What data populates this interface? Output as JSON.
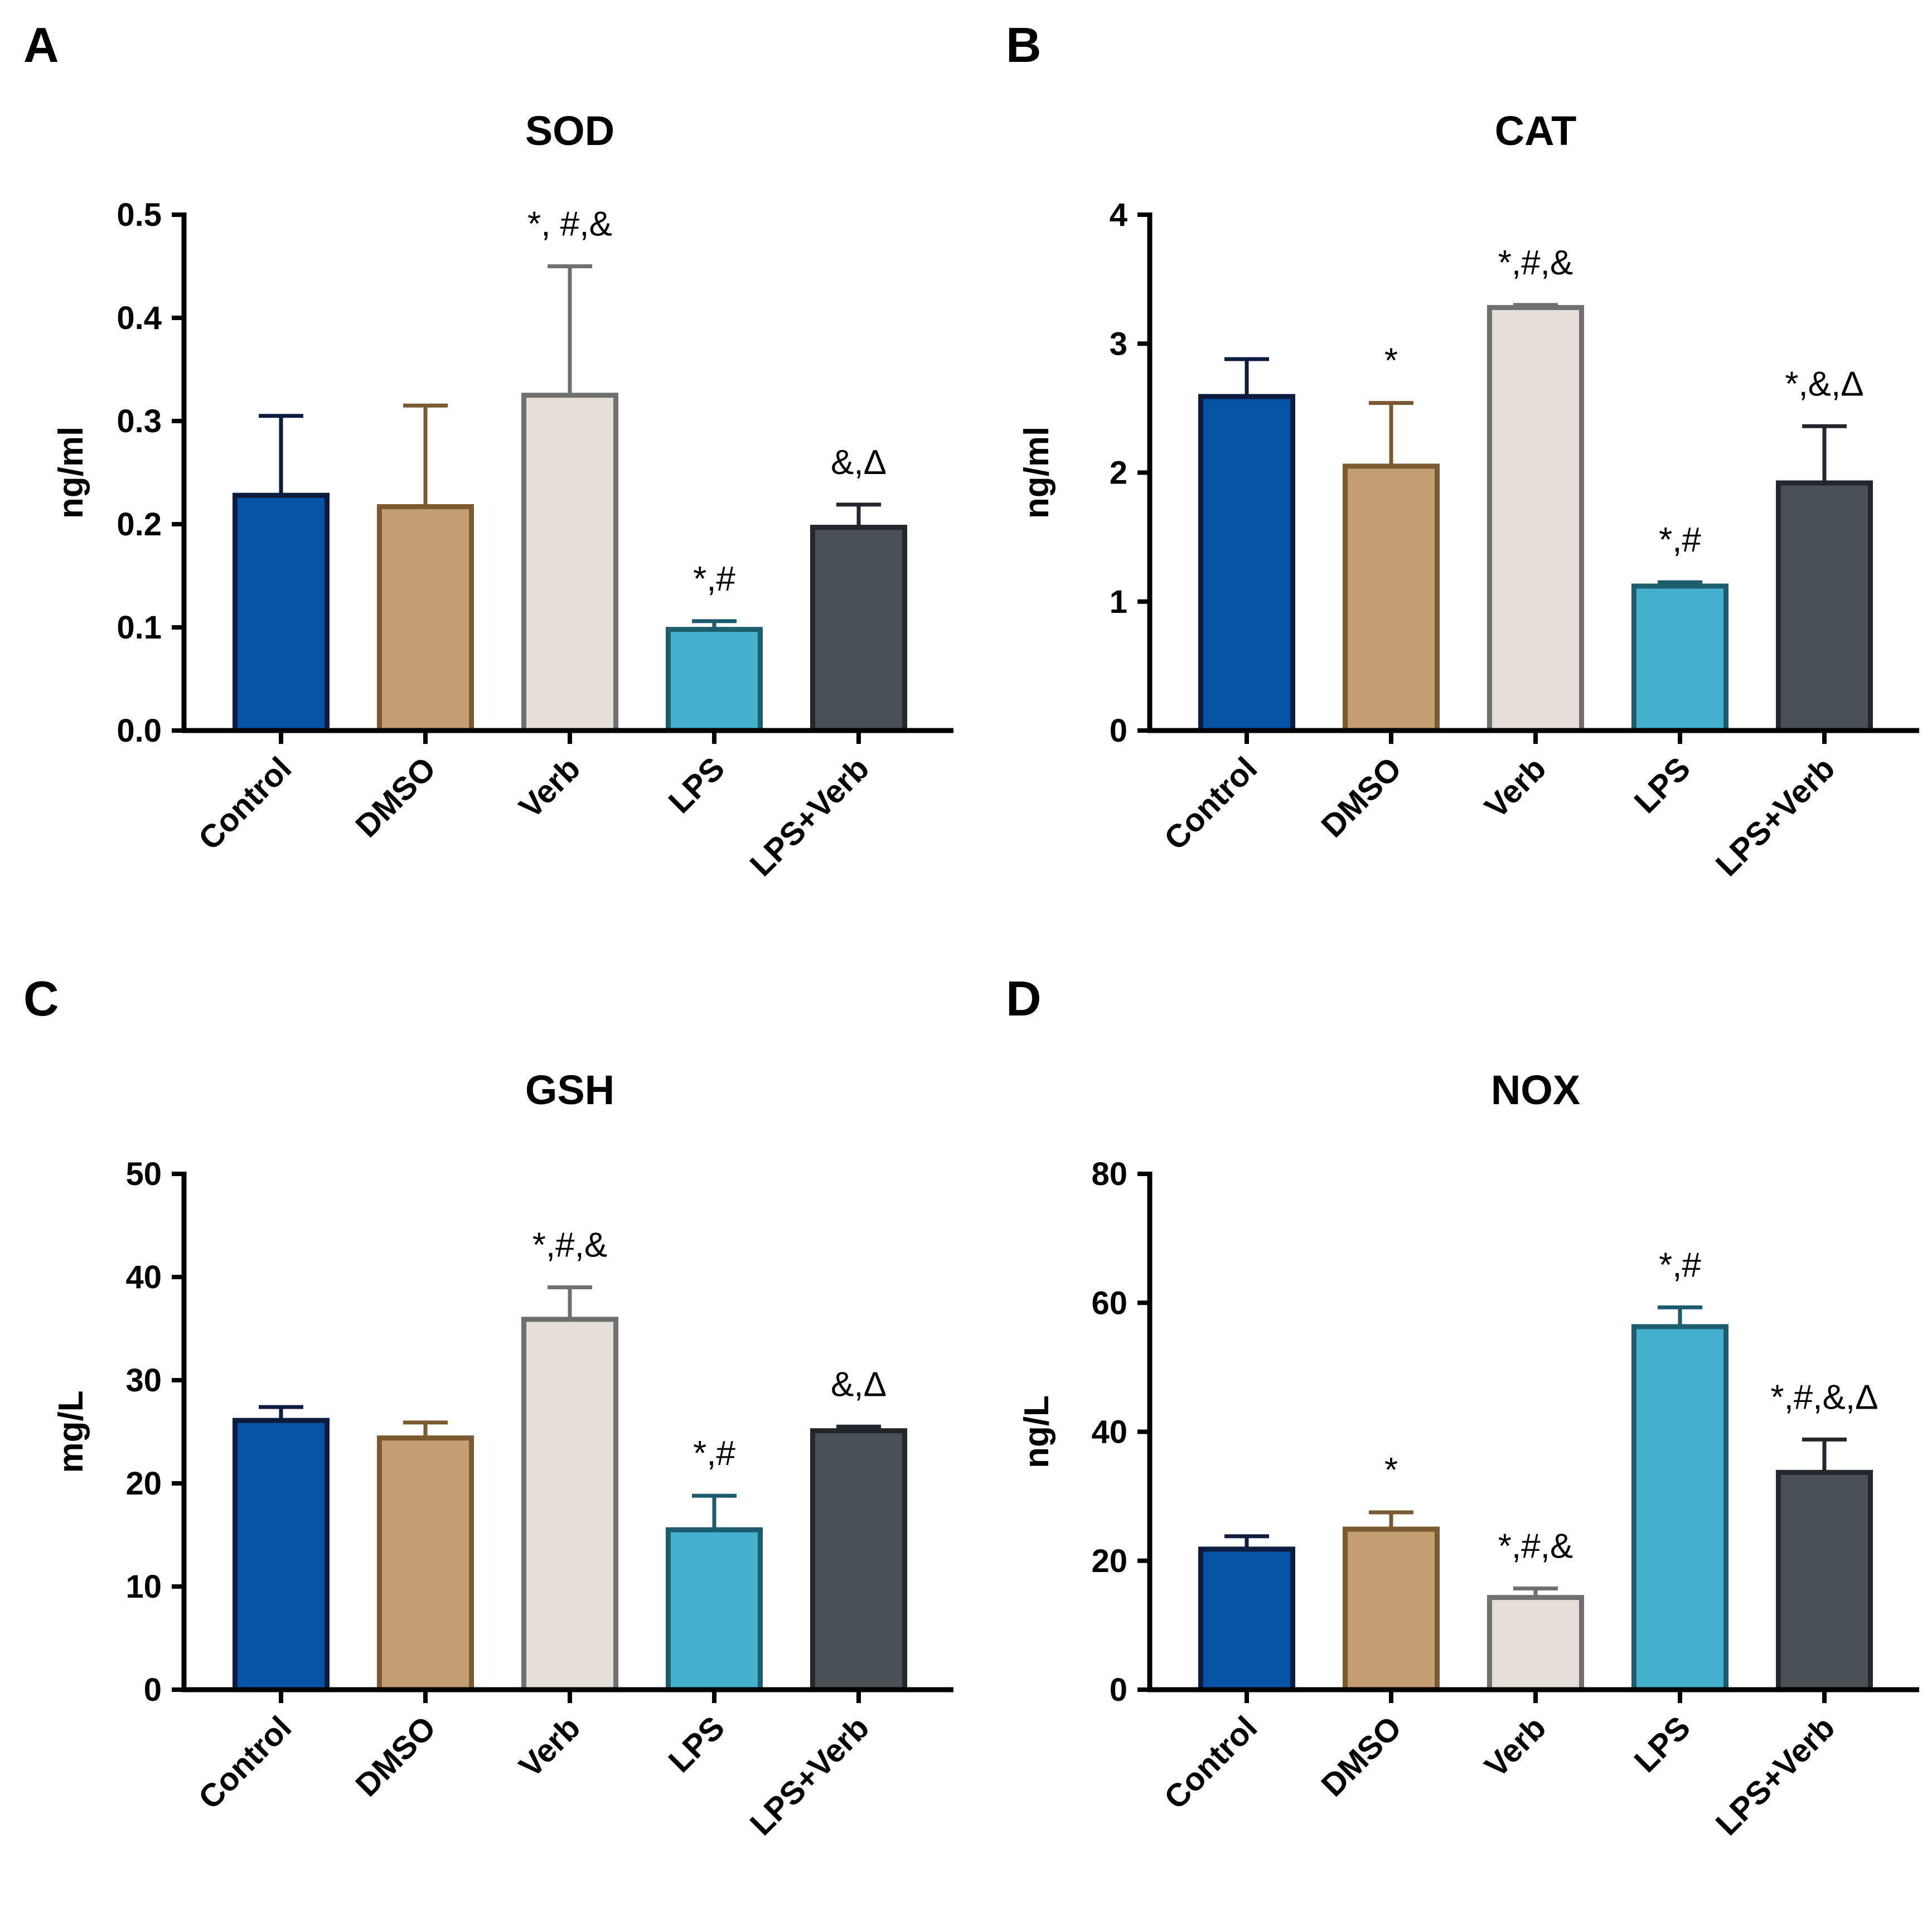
{
  "panels": [
    {
      "label": "A"
    },
    {
      "label": "B"
    },
    {
      "label": "C"
    },
    {
      "label": "D"
    }
  ],
  "colors": {
    "fill": [
      "#0453A6",
      "#C29E70",
      "#E4DFD8",
      "#44B1CC",
      "#4A4E55"
    ],
    "stroke": [
      "#0C1B3E",
      "#7A5A30",
      "#707070",
      "#1D5C6C",
      "#23262B"
    ],
    "axis": "#000000"
  },
  "chart_data": [
    {
      "type": "bar",
      "title": "SOD",
      "ylabel": "ng/ml",
      "xlabel": "",
      "categories": [
        "Control",
        "DMSO",
        "Verb",
        "LPS",
        "LPS+Verb"
      ],
      "values": [
        0.228,
        0.217,
        0.325,
        0.098,
        0.197
      ],
      "errors": [
        0.077,
        0.098,
        0.125,
        0.008,
        0.022
      ],
      "annotations": [
        "",
        "",
        "*, #,&",
        "*,#",
        "&,Δ"
      ],
      "ylim": [
        0,
        0.5
      ],
      "yticks": [
        "0.0",
        "0.1",
        "0.2",
        "0.3",
        "0.4",
        "0.5"
      ]
    },
    {
      "type": "bar",
      "title": "CAT",
      "ylabel": "ng/ml",
      "xlabel": "",
      "categories": [
        "Control",
        "DMSO",
        "Verb",
        "LPS",
        "LPS+Verb"
      ],
      "values": [
        2.59,
        2.05,
        3.28,
        1.12,
        1.92
      ],
      "errors": [
        0.29,
        0.49,
        0.02,
        0.03,
        0.44
      ],
      "annotations": [
        "",
        "*",
        "*,#,&",
        "*,#",
        "*,&,Δ"
      ],
      "ylim": [
        0,
        4
      ],
      "yticks": [
        "0",
        "1",
        "2",
        "3",
        "4"
      ]
    },
    {
      "type": "bar",
      "title": "GSH",
      "ylabel": "mg/L",
      "xlabel": "",
      "categories": [
        "Control",
        "DMSO",
        "Verb",
        "LPS",
        "LPS+Verb"
      ],
      "values": [
        26.1,
        24.4,
        35.9,
        15.5,
        25.1
      ],
      "errors": [
        1.3,
        1.5,
        3.1,
        3.3,
        0.4
      ],
      "annotations": [
        "",
        "",
        "*,#,&",
        "*,#",
        "&,Δ"
      ],
      "ylim": [
        0,
        50
      ],
      "yticks": [
        "0",
        "10",
        "20",
        "30",
        "40",
        "50"
      ]
    },
    {
      "type": "bar",
      "title": "NOX",
      "ylabel": "ng/L",
      "xlabel": "",
      "categories": [
        "Control",
        "DMSO",
        "Verb",
        "LPS",
        "LPS+Verb"
      ],
      "values": [
        21.8,
        24.9,
        14.3,
        56.3,
        33.7
      ],
      "errors": [
        2.0,
        2.6,
        1.4,
        3.0,
        5.1
      ],
      "annotations": [
        "",
        "*",
        "*,#,&",
        "*,#",
        "*,#,&,Δ"
      ],
      "ylim": [
        0,
        80
      ],
      "yticks": [
        "0",
        "20",
        "40",
        "60",
        "80"
      ]
    }
  ]
}
